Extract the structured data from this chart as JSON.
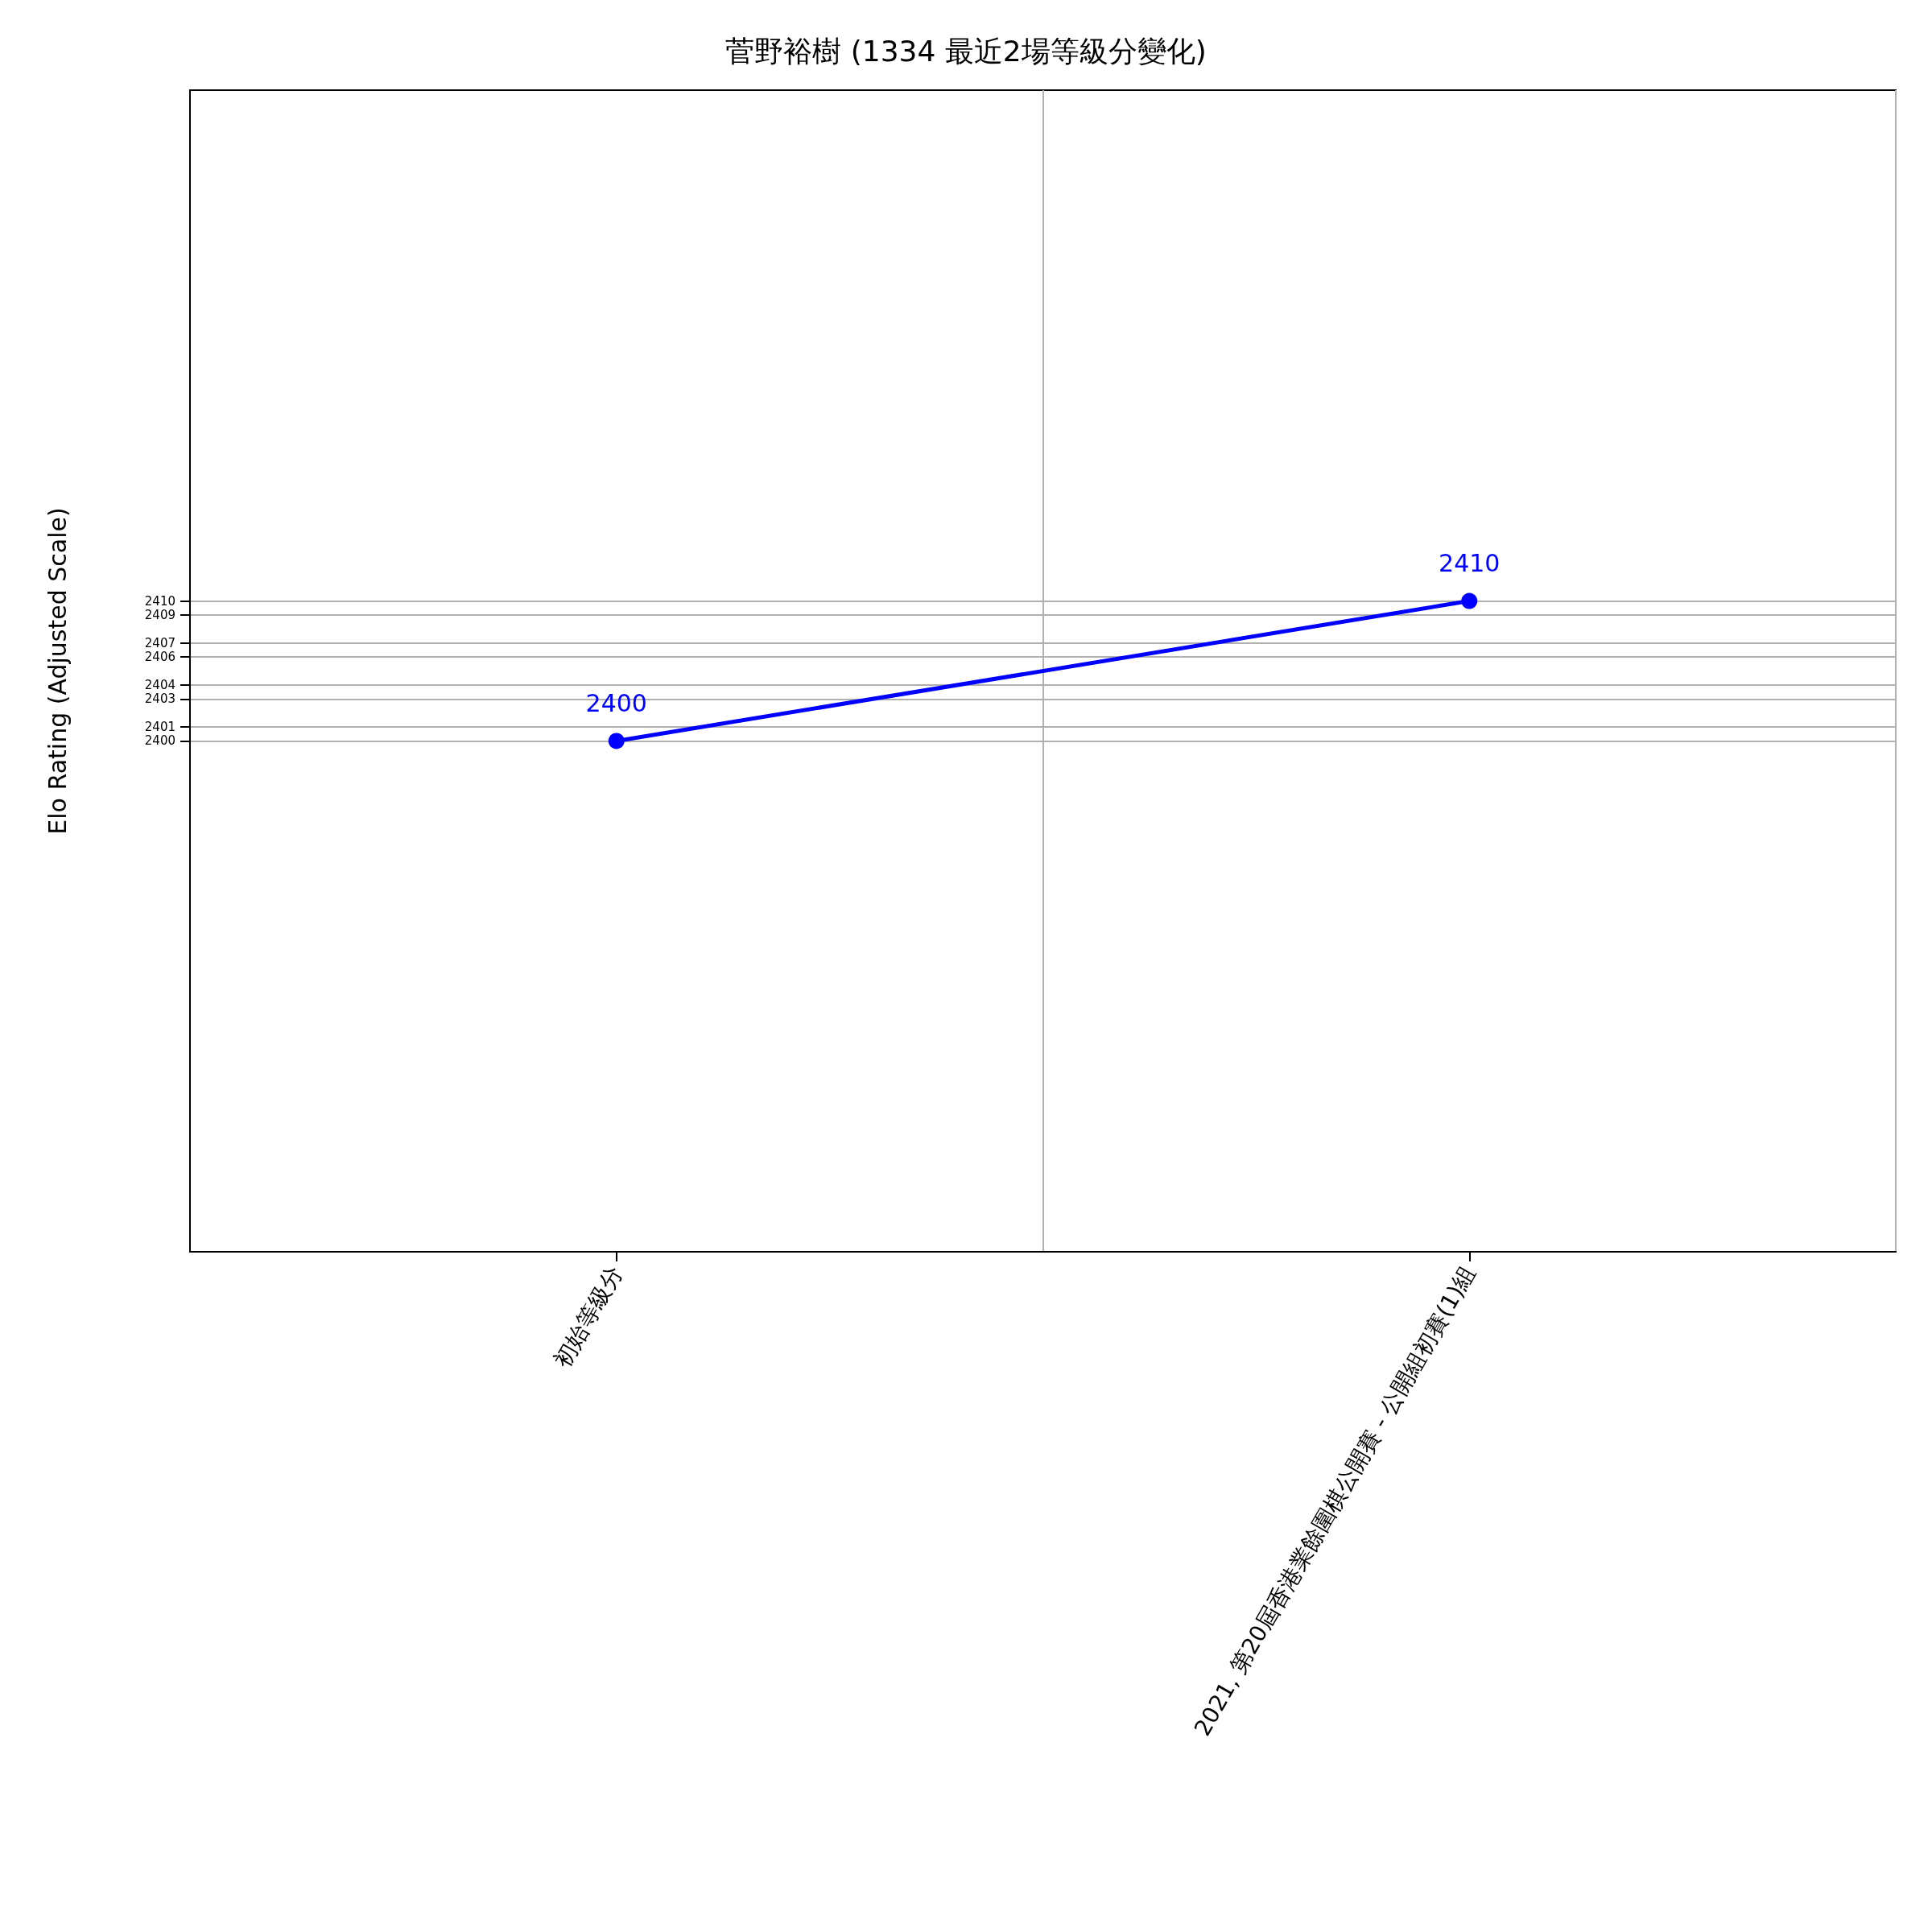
{
  "chart_data": {
    "type": "line",
    "title": "菅野裕樹 (1334 最近2場等級分變化)",
    "ylabel": "Elo Rating (Adjusted Scale)",
    "categories": [
      "初始等級分",
      "2021, 第20屆香港業餘圍棋公開賽 - 公開組初賽(1)組"
    ],
    "series": [
      {
        "color": "#0000ff",
        "values": [
          2400,
          2410
        ]
      }
    ],
    "ylim": [
      2363.5,
      2446.5
    ],
    "yticks": [
      2400,
      2401,
      2403,
      2404,
      2406,
      2407,
      2409,
      2410
    ],
    "grid": true,
    "marker": "circle",
    "line_style": "solid",
    "data_labels": true
  }
}
